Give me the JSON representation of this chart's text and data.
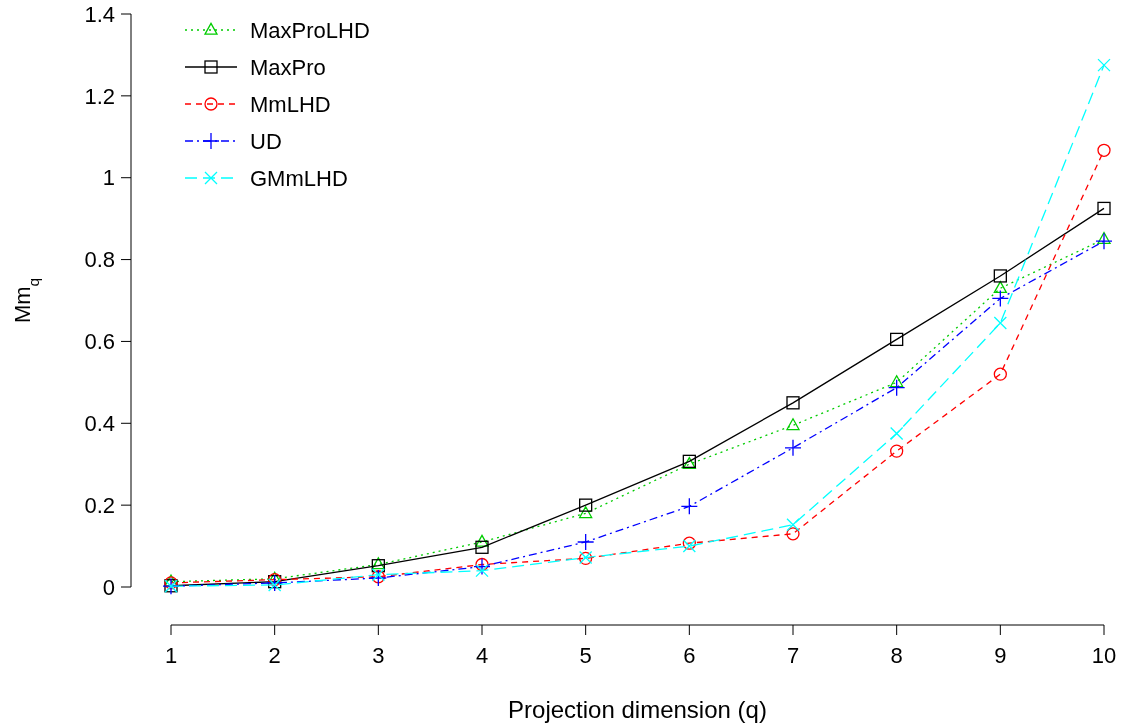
{
  "chart_data": {
    "type": "line",
    "xlabel": "Projection dimension (q)",
    "ylabel": "Mm$_{q}$",
    "x": [
      1,
      2,
      3,
      4,
      5,
      6,
      7,
      8,
      9,
      10
    ],
    "xlim": [
      1,
      10
    ],
    "xticks": [
      1,
      2,
      3,
      4,
      5,
      6,
      7,
      8,
      9,
      10
    ],
    "ylim": [
      0,
      1.4
    ],
    "yticks": [
      0,
      {
        "value": 0.2,
        "label": "0.2"
      },
      {
        "value": 0.4,
        "label": "0.4"
      },
      {
        "value": 0.6,
        "label": "0.6"
      },
      {
        "value": 0.8,
        "label": "0.8"
      },
      1,
      {
        "value": 1.2,
        "label": "1.2"
      },
      {
        "value": 1.4,
        "label": "1.4"
      }
    ],
    "legend": "top left",
    "grid": false,
    "series": [
      {
        "name": "MaxProLHD",
        "color": "#00cc00",
        "marker": "triangle",
        "line_style": "dotted",
        "values": [
          0.013,
          0.02,
          0.055,
          0.11,
          0.18,
          0.3,
          0.395,
          0.5,
          0.73,
          0.85
        ]
      },
      {
        "name": "MaxPro",
        "color": "#000000",
        "marker": "square",
        "line_style": "solid",
        "values": [
          0.003,
          0.013,
          0.052,
          0.097,
          0.2,
          0.307,
          0.45,
          0.605,
          0.76,
          0.925
        ]
      },
      {
        "name": "MmLHD",
        "color": "#ff0000",
        "marker": "circle",
        "line_style": "dashed",
        "values": [
          0.01,
          0.018,
          0.025,
          0.055,
          0.07,
          0.107,
          0.13,
          0.332,
          0.52,
          1.067
        ]
      },
      {
        "name": "UD",
        "color": "#0000ff",
        "marker": "plus",
        "line_style": "dashdot",
        "values": [
          0.002,
          0.01,
          0.022,
          0.05,
          0.11,
          0.197,
          0.34,
          0.487,
          0.705,
          0.845
        ]
      },
      {
        "name": "GMmLHD",
        "color": "#00ffff",
        "marker": "cross",
        "line_style": "longdash",
        "values": [
          0.002,
          0.005,
          0.03,
          0.04,
          0.072,
          0.1,
          0.152,
          0.375,
          0.645,
          1.275
        ]
      }
    ]
  }
}
